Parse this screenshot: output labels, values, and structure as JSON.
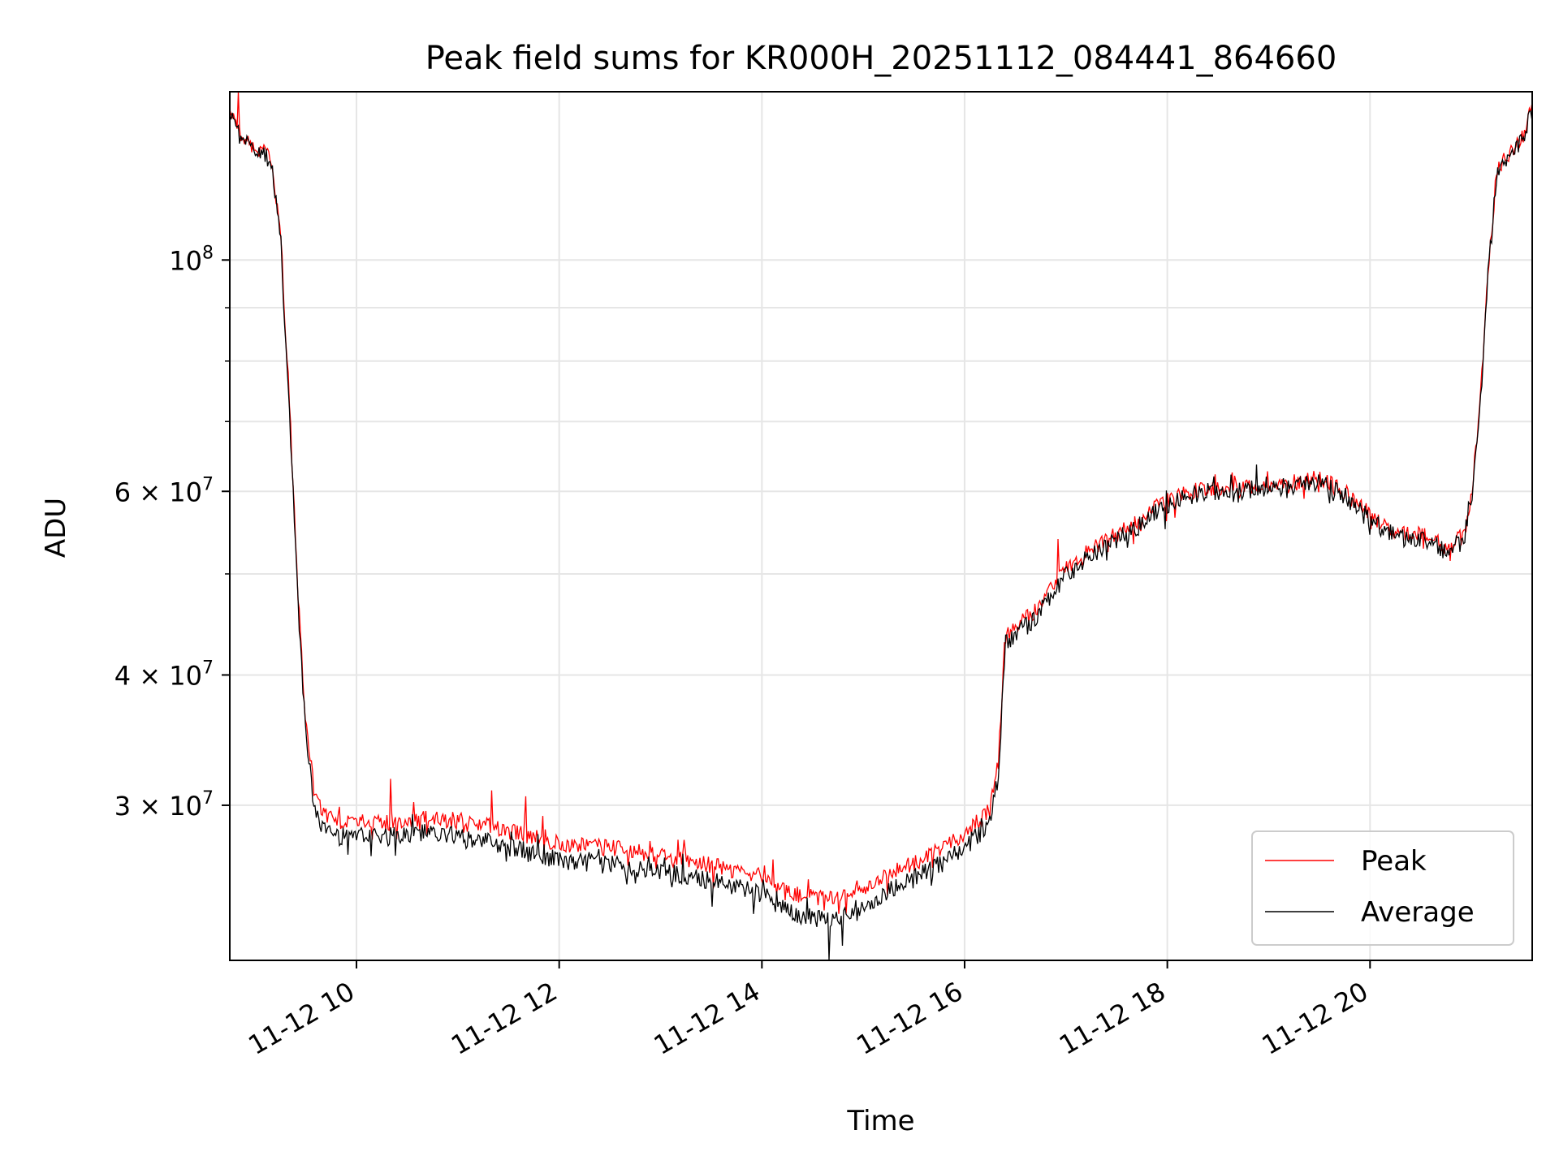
{
  "chart_data": {
    "type": "line",
    "title": "Peak field sums for KR000H_20251112_084441_864660",
    "xlabel": "Time",
    "ylabel": "ADU",
    "x_scale": "time",
    "y_scale": "log",
    "xlim": [
      "2025-11-12 08:45",
      "2025-11-12 21:36"
    ],
    "ylim": [
      21300000,
      145000000
    ],
    "x_ticks": [
      {
        "value": "2025-11-12 10:00",
        "label": "11-12 10"
      },
      {
        "value": "2025-11-12 12:00",
        "label": "11-12 12"
      },
      {
        "value": "2025-11-12 14:00",
        "label": "11-12 14"
      },
      {
        "value": "2025-11-12 16:00",
        "label": "11-12 16"
      },
      {
        "value": "2025-11-12 18:00",
        "label": "11-12 18"
      },
      {
        "value": "2025-11-12 20:00",
        "label": "11-12 20"
      }
    ],
    "y_ticks": [
      {
        "value": 30000000,
        "base": "3",
        "exp": "7"
      },
      {
        "value": 40000000,
        "base": "4",
        "exp": "7"
      },
      {
        "value": 60000000,
        "base": "6",
        "exp": "7"
      },
      {
        "value": 100000000,
        "base": "",
        "exp": "8"
      }
    ],
    "y_minor_ticks": [
      50000000,
      70000000,
      80000000,
      90000000
    ],
    "grid": true,
    "legend_position": "lower-right",
    "series": [
      {
        "name": "Peak",
        "color": "#ff0000",
        "points": [
          [
            "2025-11-12 08:45",
            140000000
          ],
          [
            "2025-11-12 08:50",
            133000000
          ],
          [
            "2025-11-12 08:55",
            130000000
          ],
          [
            "2025-11-12 09:05",
            127000000
          ],
          [
            "2025-11-12 09:10",
            125000000
          ],
          [
            "2025-11-12 09:15",
            105000000
          ],
          [
            "2025-11-12 09:20",
            75000000
          ],
          [
            "2025-11-12 09:25",
            49000000
          ],
          [
            "2025-11-12 09:30",
            36000000
          ],
          [
            "2025-11-12 09:35",
            31000000
          ],
          [
            "2025-11-12 09:40",
            29500000
          ],
          [
            "2025-11-12 09:50",
            29000000
          ],
          [
            "2025-11-12 10:00",
            28800000
          ],
          [
            "2025-11-12 10:20",
            28900000
          ],
          [
            "2025-11-12 10:40",
            29100000
          ],
          [
            "2025-11-12 11:00",
            29000000
          ],
          [
            "2025-11-12 11:20",
            28600000
          ],
          [
            "2025-11-12 11:40",
            28100000
          ],
          [
            "2025-11-12 12:00",
            27600000
          ],
          [
            "2025-11-12 12:30",
            27300000
          ],
          [
            "2025-11-12 13:00",
            26900000
          ],
          [
            "2025-11-12 13:30",
            26300000
          ],
          [
            "2025-11-12 14:00",
            25600000
          ],
          [
            "2025-11-12 14:15",
            24700000
          ],
          [
            "2025-11-12 14:30",
            24500000
          ],
          [
            "2025-11-12 14:45",
            24400000
          ],
          [
            "2025-11-12 15:00",
            24900000
          ],
          [
            "2025-11-12 15:15",
            25800000
          ],
          [
            "2025-11-12 15:30",
            26400000
          ],
          [
            "2025-11-12 15:45",
            27200000
          ],
          [
            "2025-11-12 16:00",
            28200000
          ],
          [
            "2025-11-12 16:15",
            29700000
          ],
          [
            "2025-11-12 16:20",
            33000000
          ],
          [
            "2025-11-12 16:24",
            43500000
          ],
          [
            "2025-11-12 16:40",
            45800000
          ],
          [
            "2025-11-12 17:00",
            50500000
          ],
          [
            "2025-11-12 17:20",
            53500000
          ],
          [
            "2025-11-12 17:40",
            56000000
          ],
          [
            "2025-11-12 18:00",
            58800000
          ],
          [
            "2025-11-12 18:20",
            60300000
          ],
          [
            "2025-11-12 18:40",
            60600000
          ],
          [
            "2025-11-12 19:00",
            60900000
          ],
          [
            "2025-11-12 19:20",
            61200000
          ],
          [
            "2025-11-12 19:30",
            61700000
          ],
          [
            "2025-11-12 19:45",
            60000000
          ],
          [
            "2025-11-12 20:00",
            56800000
          ],
          [
            "2025-11-12 20:15",
            55000000
          ],
          [
            "2025-11-12 20:30",
            54600000
          ],
          [
            "2025-11-12 20:45",
            53300000
          ],
          [
            "2025-11-12 20:55",
            54300000
          ],
          [
            "2025-11-12 21:00",
            59000000
          ],
          [
            "2025-11-12 21:05",
            72000000
          ],
          [
            "2025-11-12 21:10",
            98000000
          ],
          [
            "2025-11-12 21:15",
            122000000
          ],
          [
            "2025-11-12 21:20",
            125000000
          ],
          [
            "2025-11-12 21:25",
            128000000
          ],
          [
            "2025-11-12 21:30",
            131000000
          ],
          [
            "2025-11-12 21:36",
            140000000
          ]
        ]
      },
      {
        "name": "Average",
        "color": "#000000",
        "points": [
          [
            "2025-11-12 08:45",
            139000000
          ],
          [
            "2025-11-12 08:50",
            132000000
          ],
          [
            "2025-11-12 08:55",
            129500000
          ],
          [
            "2025-11-12 09:05",
            126500000
          ],
          [
            "2025-11-12 09:10",
            124000000
          ],
          [
            "2025-11-12 09:15",
            104000000
          ],
          [
            "2025-11-12 09:20",
            74000000
          ],
          [
            "2025-11-12 09:25",
            48000000
          ],
          [
            "2025-11-12 09:30",
            35000000
          ],
          [
            "2025-11-12 09:35",
            30000000
          ],
          [
            "2025-11-12 09:40",
            28500000
          ],
          [
            "2025-11-12 09:50",
            28000000
          ],
          [
            "2025-11-12 10:00",
            27900000
          ],
          [
            "2025-11-12 10:20",
            28000000
          ],
          [
            "2025-11-12 10:40",
            28200000
          ],
          [
            "2025-11-12 11:00",
            28000000
          ],
          [
            "2025-11-12 11:20",
            27600000
          ],
          [
            "2025-11-12 11:40",
            27100000
          ],
          [
            "2025-11-12 12:00",
            26600000
          ],
          [
            "2025-11-12 12:30",
            26300000
          ],
          [
            "2025-11-12 13:00",
            25900000
          ],
          [
            "2025-11-12 13:30",
            25400000
          ],
          [
            "2025-11-12 14:00",
            24700000
          ],
          [
            "2025-11-12 14:15",
            23700000
          ],
          [
            "2025-11-12 14:30",
            23400000
          ],
          [
            "2025-11-12 14:45",
            23300000
          ],
          [
            "2025-11-12 15:00",
            23800000
          ],
          [
            "2025-11-12 15:15",
            24800000
          ],
          [
            "2025-11-12 15:30",
            25500000
          ],
          [
            "2025-11-12 15:45",
            26300000
          ],
          [
            "2025-11-12 16:00",
            27300000
          ],
          [
            "2025-11-12 16:15",
            28900000
          ],
          [
            "2025-11-12 16:20",
            32000000
          ],
          [
            "2025-11-12 16:24",
            42800000
          ],
          [
            "2025-11-12 16:40",
            45000000
          ],
          [
            "2025-11-12 17:00",
            49800000
          ],
          [
            "2025-11-12 17:20",
            52800000
          ],
          [
            "2025-11-12 17:40",
            55300000
          ],
          [
            "2025-11-12 18:00",
            58200000
          ],
          [
            "2025-11-12 18:20",
            59800000
          ],
          [
            "2025-11-12 18:40",
            60100000
          ],
          [
            "2025-11-12 19:00",
            60400000
          ],
          [
            "2025-11-12 19:20",
            60700000
          ],
          [
            "2025-11-12 19:30",
            61200000
          ],
          [
            "2025-11-12 19:45",
            59400000
          ],
          [
            "2025-11-12 20:00",
            56200000
          ],
          [
            "2025-11-12 20:15",
            54300000
          ],
          [
            "2025-11-12 20:30",
            53900000
          ],
          [
            "2025-11-12 20:45",
            52700000
          ],
          [
            "2025-11-12 20:55",
            53700000
          ],
          [
            "2025-11-12 21:00",
            58300000
          ],
          [
            "2025-11-12 21:05",
            71000000
          ],
          [
            "2025-11-12 21:10",
            97000000
          ],
          [
            "2025-11-12 21:15",
            121000000
          ],
          [
            "2025-11-12 21:20",
            124000000
          ],
          [
            "2025-11-12 21:25",
            127000000
          ],
          [
            "2025-11-12 21:30",
            130000000
          ],
          [
            "2025-11-12 21:36",
            139000000
          ]
        ]
      }
    ],
    "annotations": {
      "peak_spikes": [
        [
          "2025-11-12 08:50",
          145000000
        ],
        [
          "2025-11-12 09:50",
          29900000
        ],
        [
          "2025-11-12 10:20",
          31800000
        ],
        [
          "2025-11-12 11:20",
          31000000
        ],
        [
          "2025-11-12 11:40",
          30600000
        ],
        [
          "2025-11-12 11:50",
          29300000
        ],
        [
          "2025-11-12 13:10",
          27800000
        ],
        [
          "2025-11-12 16:55",
          54000000
        ],
        [
          "2025-11-12 18:40",
          62100000
        ],
        [
          "2025-11-12 19:15",
          62300000
        ]
      ],
      "average_dips": [
        [
          "2025-11-12 09:55",
          26900000
        ],
        [
          "2025-11-12 13:55",
          23600000
        ],
        [
          "2025-11-12 14:40",
          21300000
        ],
        [
          "2025-11-12 20:45",
          52000000
        ]
      ]
    }
  }
}
